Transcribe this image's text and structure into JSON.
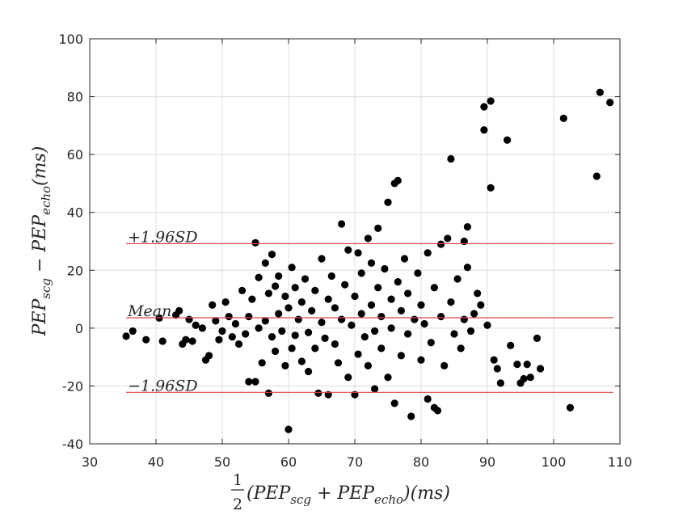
{
  "chart_data": {
    "type": "scatter",
    "title": "",
    "xlabel": {
      "frac_num": "1",
      "frac_den": "2",
      "text_open": "(PEP",
      "sub1": "scg",
      "text_mid": " + PEP",
      "sub2": "echo",
      "text_close": ")(ms)"
    },
    "ylabel": {
      "text_a": "PEP",
      "sub1": "scg",
      "text_b": " − PEP",
      "sub2": "echo",
      "text_c": "(ms)"
    },
    "xlim": [
      30,
      110
    ],
    "ylim": [
      -40,
      100
    ],
    "xticks": [
      30,
      40,
      50,
      60,
      70,
      80,
      90,
      100,
      110
    ],
    "yticks": [
      -40,
      -20,
      0,
      20,
      40,
      60,
      80,
      100
    ],
    "xtick_labels": [
      "30",
      "40",
      "50",
      "60",
      "70",
      "80",
      "90",
      "100",
      "110"
    ],
    "ytick_labels": [
      "-40",
      "-20",
      "0",
      "20",
      "40",
      "60",
      "80",
      "100"
    ],
    "grid": true,
    "point_color": "#000000",
    "line_color": "#e04545",
    "reference_lines": [
      {
        "name": "upper-limit",
        "label": "+1.96SD",
        "y": 29.2,
        "x_range": [
          35.5,
          109
        ]
      },
      {
        "name": "mean",
        "label": "Mean",
        "y": 3.6,
        "x_range": [
          35.5,
          109
        ]
      },
      {
        "name": "lower-limit",
        "label": "−1.96SD",
        "y": -22.2,
        "x_range": [
          35.5,
          109
        ]
      }
    ],
    "points": [
      [
        35.5,
        -2.8
      ],
      [
        36.5,
        -1
      ],
      [
        38.5,
        -4
      ],
      [
        40.5,
        3.5
      ],
      [
        41,
        -4.5
      ],
      [
        43,
        4.5
      ],
      [
        43.5,
        6
      ],
      [
        44,
        -5.5
      ],
      [
        44.5,
        -4
      ],
      [
        45,
        3
      ],
      [
        45.5,
        -4.5
      ],
      [
        46,
        1
      ],
      [
        47,
        0
      ],
      [
        47.5,
        -11
      ],
      [
        48,
        -9.5
      ],
      [
        48.5,
        8
      ],
      [
        49,
        2.5
      ],
      [
        49.5,
        -4
      ],
      [
        50,
        -1
      ],
      [
        50.5,
        9
      ],
      [
        51,
        4
      ],
      [
        51.5,
        -3
      ],
      [
        52,
        1.5
      ],
      [
        52.5,
        -5.5
      ],
      [
        53,
        13
      ],
      [
        53.5,
        -2
      ],
      [
        54,
        -18.5
      ],
      [
        54,
        4
      ],
      [
        54.5,
        10
      ],
      [
        55,
        29.5
      ],
      [
        55,
        -18.5
      ],
      [
        55.5,
        0
      ],
      [
        55.5,
        17.5
      ],
      [
        56,
        -12
      ],
      [
        56.5,
        2.5
      ],
      [
        56.5,
        22.5
      ],
      [
        57,
        -22.5
      ],
      [
        57,
        12
      ],
      [
        57.5,
        25.5
      ],
      [
        57.5,
        -3
      ],
      [
        58,
        14.5
      ],
      [
        58,
        -8
      ],
      [
        58.5,
        5
      ],
      [
        58.5,
        18
      ],
      [
        59,
        -1
      ],
      [
        59.5,
        -13
      ],
      [
        59.5,
        11
      ],
      [
        60,
        -35
      ],
      [
        60,
        7
      ],
      [
        60.5,
        21
      ],
      [
        60.5,
        -7
      ],
      [
        61,
        14
      ],
      [
        61,
        -2.5
      ],
      [
        61.5,
        3
      ],
      [
        62,
        -11.5
      ],
      [
        62,
        9
      ],
      [
        62.5,
        17
      ],
      [
        63,
        -1.5
      ],
      [
        63,
        -15
      ],
      [
        63.5,
        6
      ],
      [
        64,
        13
      ],
      [
        64,
        -7
      ],
      [
        64.5,
        -22.5
      ],
      [
        65,
        2
      ],
      [
        65,
        24
      ],
      [
        65.5,
        -3.5
      ],
      [
        66,
        -23
      ],
      [
        66,
        10
      ],
      [
        66.5,
        18
      ],
      [
        67,
        -5.5
      ],
      [
        67,
        7
      ],
      [
        67.5,
        -12
      ],
      [
        68,
        36
      ],
      [
        68,
        3
      ],
      [
        68.5,
        15
      ],
      [
        69,
        27
      ],
      [
        69,
        -17
      ],
      [
        69.5,
        1
      ],
      [
        70,
        -23
      ],
      [
        70,
        11
      ],
      [
        70.5,
        26
      ],
      [
        70.5,
        -9
      ],
      [
        71,
        5
      ],
      [
        71,
        19
      ],
      [
        71.5,
        -3
      ],
      [
        72,
        31
      ],
      [
        72,
        -13
      ],
      [
        72.5,
        8
      ],
      [
        72.5,
        22.5
      ],
      [
        73,
        -21
      ],
      [
        73,
        -1
      ],
      [
        73.5,
        34.5
      ],
      [
        73.5,
        14
      ],
      [
        74,
        -7
      ],
      [
        74,
        4
      ],
      [
        74.5,
        20.5
      ],
      [
        75,
        43.5
      ],
      [
        75,
        -17
      ],
      [
        75.5,
        10
      ],
      [
        75.5,
        0
      ],
      [
        76,
        50
      ],
      [
        76,
        -26
      ],
      [
        76.5,
        51
      ],
      [
        76.5,
        16
      ],
      [
        77,
        -9.5
      ],
      [
        77,
        6
      ],
      [
        77.5,
        24
      ],
      [
        78,
        -2
      ],
      [
        78,
        12
      ],
      [
        78.5,
        -30.5
      ],
      [
        79,
        3
      ],
      [
        79.5,
        19
      ],
      [
        80,
        -11
      ],
      [
        80,
        8
      ],
      [
        80.5,
        1.5
      ],
      [
        81,
        26
      ],
      [
        81,
        -24.5
      ],
      [
        81.5,
        -5
      ],
      [
        82,
        -27.5
      ],
      [
        82,
        14
      ],
      [
        82.5,
        -28.5
      ],
      [
        83,
        29
      ],
      [
        83,
        4
      ],
      [
        83.5,
        -13
      ],
      [
        84,
        31
      ],
      [
        84.5,
        58.5
      ],
      [
        84.5,
        9
      ],
      [
        85,
        -2
      ],
      [
        85.5,
        17
      ],
      [
        86,
        -7
      ],
      [
        86.5,
        3
      ],
      [
        86.5,
        30
      ],
      [
        87,
        35
      ],
      [
        87,
        21
      ],
      [
        87.5,
        -1
      ],
      [
        88,
        5
      ],
      [
        88.5,
        12
      ],
      [
        89,
        8
      ],
      [
        89.5,
        68.5
      ],
      [
        89.5,
        76.5
      ],
      [
        90,
        1
      ],
      [
        90.5,
        78.5
      ],
      [
        90.5,
        48.5
      ],
      [
        91,
        -11
      ],
      [
        91.5,
        -14
      ],
      [
        92,
        -19
      ],
      [
        93,
        65
      ],
      [
        93.5,
        -6
      ],
      [
        94.5,
        -12.5
      ],
      [
        95,
        -19
      ],
      [
        95.5,
        -17.5
      ],
      [
        96,
        -12.5
      ],
      [
        96.5,
        -17
      ],
      [
        97.5,
        -3.5
      ],
      [
        98,
        -14
      ],
      [
        101.5,
        72.5
      ],
      [
        102.5,
        -27.5
      ],
      [
        106.5,
        52.5
      ],
      [
        107,
        81.5
      ],
      [
        108.5,
        78
      ]
    ]
  }
}
